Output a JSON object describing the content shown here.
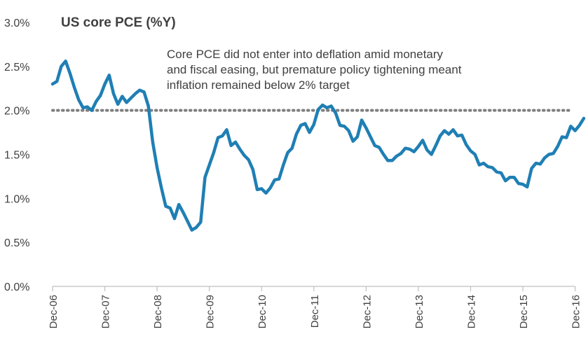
{
  "chart_data": {
    "type": "line",
    "title": "US core PCE (%Y)",
    "annotation": [
      "Core PCE did not enter into deflation amid monetary",
      "and fiscal easing, but premature policy tightening meant",
      "inflation remained below 2% target"
    ],
    "xlabel": "",
    "ylabel": "",
    "ylim": [
      0,
      3
    ],
    "y_ticks": [
      0,
      0.5,
      1,
      1.5,
      2,
      2.5,
      3
    ],
    "y_tick_labels": [
      "0.0%",
      "0.5%",
      "1.0%",
      "1.5%",
      "2.0%",
      "2.5%",
      "3.0%"
    ],
    "x_tick_labels": [
      "Dec-06",
      "Dec-07",
      "Dec-08",
      "Dec-09",
      "Dec-10",
      "Dec-11",
      "Dec-12",
      "Dec-13",
      "Dec-14",
      "Dec-15",
      "Dec-16"
    ],
    "x_start": "Dec-06",
    "reference_line": {
      "value": 2.0,
      "style": "dotted",
      "color": "#7f7f7f"
    },
    "series": [
      {
        "color": "#1f7fb4",
        "frequency": "monthly",
        "values": [
          2.3,
          2.33,
          2.5,
          2.56,
          2.42,
          2.26,
          2.12,
          2.03,
          2.04,
          2.0,
          2.1,
          2.17,
          2.3,
          2.4,
          2.19,
          2.07,
          2.16,
          2.09,
          2.14,
          2.19,
          2.23,
          2.21,
          2.05,
          1.64,
          1.35,
          1.12,
          0.91,
          0.89,
          0.77,
          0.93,
          0.84,
          0.74,
          0.64,
          0.67,
          0.73,
          1.24,
          1.38,
          1.52,
          1.69,
          1.71,
          1.78,
          1.6,
          1.64,
          1.56,
          1.49,
          1.44,
          1.33,
          1.1,
          1.11,
          1.06,
          1.12,
          1.21,
          1.22,
          1.38,
          1.52,
          1.57,
          1.73,
          1.83,
          1.85,
          1.75,
          1.84,
          2.01,
          2.06,
          2.03,
          2.05,
          1.97,
          1.83,
          1.82,
          1.77,
          1.65,
          1.7,
          1.89,
          1.8,
          1.7,
          1.6,
          1.58,
          1.5,
          1.43,
          1.43,
          1.48,
          1.51,
          1.57,
          1.56,
          1.53,
          1.59,
          1.66,
          1.55,
          1.5,
          1.6,
          1.71,
          1.77,
          1.73,
          1.78,
          1.71,
          1.72,
          1.61,
          1.54,
          1.5,
          1.38,
          1.4,
          1.36,
          1.35,
          1.3,
          1.29,
          1.2,
          1.24,
          1.24,
          1.17,
          1.16,
          1.13,
          1.34,
          1.4,
          1.39,
          1.46,
          1.5,
          1.51,
          1.59,
          1.7,
          1.69,
          1.82,
          1.77,
          1.83,
          1.91
        ]
      }
    ]
  }
}
